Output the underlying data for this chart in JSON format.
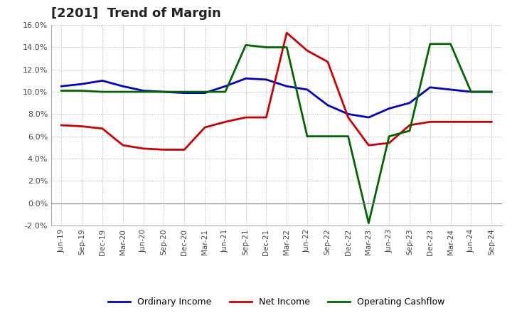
{
  "title": "[2201]  Trend of Margin",
  "x_labels": [
    "Jun-19",
    "Sep-19",
    "Dec-19",
    "Mar-20",
    "Jun-20",
    "Sep-20",
    "Dec-20",
    "Mar-21",
    "Jun-21",
    "Sep-21",
    "Dec-21",
    "Mar-22",
    "Jun-22",
    "Sep-22",
    "Dec-22",
    "Mar-23",
    "Jun-23",
    "Sep-23",
    "Dec-23",
    "Mar-24",
    "Jun-24",
    "Sep-24"
  ],
  "ordinary_income": [
    10.5,
    10.7,
    11.0,
    10.5,
    10.1,
    10.0,
    9.9,
    9.9,
    10.5,
    11.2,
    11.1,
    10.5,
    10.2,
    8.8,
    8.0,
    7.7,
    8.5,
    9.0,
    10.4,
    10.2,
    10.0,
    10.0
  ],
  "net_income": [
    7.0,
    6.9,
    6.7,
    5.2,
    4.9,
    4.8,
    4.8,
    6.8,
    7.3,
    7.7,
    7.7,
    15.3,
    13.7,
    12.7,
    7.7,
    5.2,
    5.4,
    7.0,
    7.3,
    7.3,
    7.3,
    7.3
  ],
  "operating_cashflow": [
    10.1,
    10.1,
    10.0,
    10.0,
    10.0,
    10.0,
    10.0,
    10.0,
    10.0,
    14.2,
    14.0,
    14.0,
    6.0,
    6.0,
    6.0,
    -1.8,
    6.0,
    6.5,
    14.3,
    14.3,
    10.0,
    10.0
  ],
  "ylim": [
    -2.0,
    16.0
  ],
  "yticks": [
    -2.0,
    0.0,
    2.0,
    4.0,
    6.0,
    8.0,
    10.0,
    12.0,
    14.0,
    16.0
  ],
  "colors": {
    "ordinary_income": "#0000cc",
    "net_income": "#cc0000",
    "operating_cashflow": "#006600"
  },
  "background_color": "#ffffff",
  "grid_color": "#999999",
  "title_fontsize": 13,
  "legend_labels": [
    "Ordinary Income",
    "Net Income",
    "Operating Cashflow"
  ]
}
